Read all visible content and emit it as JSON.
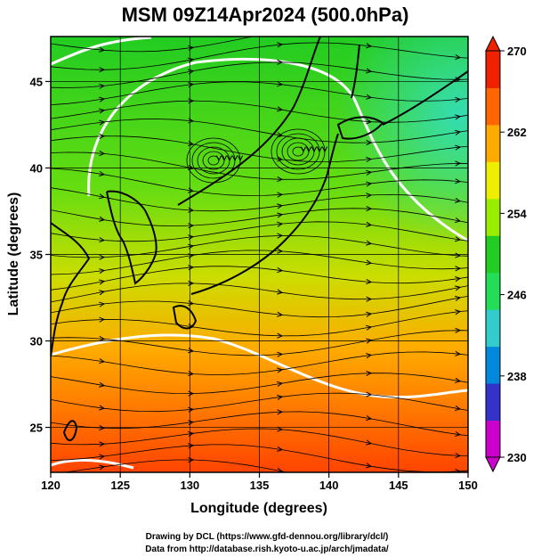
{
  "title": "MSM 09Z14Apr2024 (500.0hPa)",
  "x_axis": {
    "label": "Longitude (degrees)",
    "ticks": [
      "120",
      "125",
      "130",
      "135",
      "140",
      "145",
      "150"
    ]
  },
  "y_axis": {
    "label": "Latitude  (degrees)",
    "ticks": [
      "25",
      "30",
      "35",
      "40",
      "45"
    ]
  },
  "colorbar": {
    "ticks": [
      "270",
      "262",
      "254",
      "246",
      "238",
      "230"
    ],
    "colors": [
      "#cc00cc",
      "#3333cc",
      "#0088dd",
      "#33cccc",
      "#22dd55",
      "#22cc22",
      "#99ee00",
      "#eeee00",
      "#ffaa00",
      "#ff6600",
      "#ee2200"
    ]
  },
  "credits": {
    "line1": "Drawing by DCL (https://www.gfd-dennou.org/library/dcl/)",
    "line2": "Data from http://database.rish.kyoto-u.ac.jp/arch/jmadata/"
  },
  "chart_data": {
    "type": "heatmap",
    "title": "MSM 09Z14Apr2024 (500.0hPa)",
    "xlabel": "Longitude (degrees)",
    "ylabel": "Latitude  (degrees)",
    "xlim": [
      120,
      150
    ],
    "ylim": [
      22.4,
      47.6
    ],
    "colorbar_range": [
      230,
      270
    ],
    "colorbar_ticks": [
      270,
      262,
      254,
      246,
      238,
      230
    ],
    "overlay": "wind streamlines with arrowheads",
    "contours": "white contour lines",
    "coastlines": "black map outlines of East Asia",
    "grid": true
  }
}
